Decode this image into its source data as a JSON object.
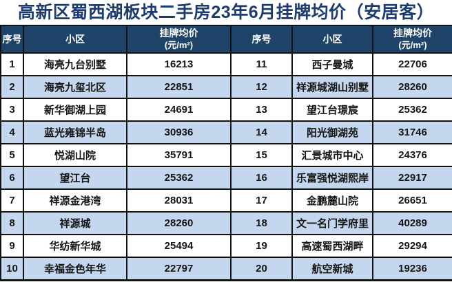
{
  "title": "高新区蜀西湖板块二手房23年6月挂牌均价（安居客）",
  "colors": {
    "navy": "#1F4369",
    "title-text": "#1D3B70",
    "row-alt": "#C5D7EE",
    "border": "#121212",
    "header-text": "#FFFFFF",
    "cell-text": "#141414",
    "bg": "#FFFFFF"
  },
  "header": {
    "index": "序号",
    "community": "小区",
    "price": "挂牌均价",
    "price_unit": "(元/m²)"
  },
  "rows_left": [
    {
      "no": "1",
      "name": "海亮九台别墅",
      "price": "16213"
    },
    {
      "no": "2",
      "name": "海亮九玺北区",
      "price": "22851"
    },
    {
      "no": "3",
      "name": "新华御湖上园",
      "price": "24691"
    },
    {
      "no": "4",
      "name": "蓝光雍锦半岛",
      "price": "30936"
    },
    {
      "no": "5",
      "name": "悦湖山院",
      "price": "35791"
    },
    {
      "no": "6",
      "name": "望江台",
      "price": "25362"
    },
    {
      "no": "7",
      "name": "祥源金港湾",
      "price": "28031"
    },
    {
      "no": "8",
      "name": "祥源城",
      "price": "28260"
    },
    {
      "no": "9",
      "name": "华纺新华城",
      "price": "25494"
    },
    {
      "no": "10",
      "name": "幸福金色年华",
      "price": "22797"
    }
  ],
  "rows_right": [
    {
      "no": "11",
      "name": "西子曼城",
      "price": "22706"
    },
    {
      "no": "12",
      "name": "祥源城湖山别墅",
      "price": "28260"
    },
    {
      "no": "13",
      "name": "望江台璟宸",
      "price": "25362"
    },
    {
      "no": "14",
      "name": "阳光御湖苑",
      "price": "31746"
    },
    {
      "no": "15",
      "name": "汇景城市中心",
      "price": "24376"
    },
    {
      "no": "16",
      "name": "乐富强悦湖熙岸",
      "price": "22917"
    },
    {
      "no": "17",
      "name": "金鹏麓山院",
      "price": "26651"
    },
    {
      "no": "18",
      "name": "文一名门学府里",
      "price": "40289"
    },
    {
      "no": "19",
      "name": "高速蜀西湖畔",
      "price": "29294"
    },
    {
      "no": "20",
      "name": "航空新城",
      "price": "19236"
    }
  ],
  "chart_data": {
    "type": "table",
    "title": "高新区蜀西湖板块二手房23年6月挂牌均价（安居客）",
    "columns": [
      "序号",
      "小区",
      "挂牌均价(元/m²)"
    ],
    "layout": "two-column-split, rows 1-10 left, rows 11-20 right, alternating white/light-blue row shading, navy header band",
    "rows": [
      [
        1,
        "海亮九台别墅",
        16213
      ],
      [
        2,
        "海亮九玺北区",
        22851
      ],
      [
        3,
        "新华御湖上园",
        24691
      ],
      [
        4,
        "蓝光雍锦半岛",
        30936
      ],
      [
        5,
        "悦湖山院",
        35791
      ],
      [
        6,
        "望江台",
        25362
      ],
      [
        7,
        "祥源金港湾",
        28031
      ],
      [
        8,
        "祥源城",
        28260
      ],
      [
        9,
        "华纺新华城",
        25494
      ],
      [
        10,
        "幸福金色年华",
        22797
      ],
      [
        11,
        "西子曼城",
        22706
      ],
      [
        12,
        "祥源城湖山别墅",
        28260
      ],
      [
        13,
        "望江台璟宸",
        25362
      ],
      [
        14,
        "阳光御湖苑",
        31746
      ],
      [
        15,
        "汇景城市中心",
        24376
      ],
      [
        16,
        "乐富强悦湖熙岸",
        22917
      ],
      [
        17,
        "金鹏麓山院",
        26651
      ],
      [
        18,
        "文一名门学府里",
        40289
      ],
      [
        19,
        "高速蜀西湖畔",
        29294
      ],
      [
        20,
        "航空新城",
        19236
      ]
    ]
  }
}
